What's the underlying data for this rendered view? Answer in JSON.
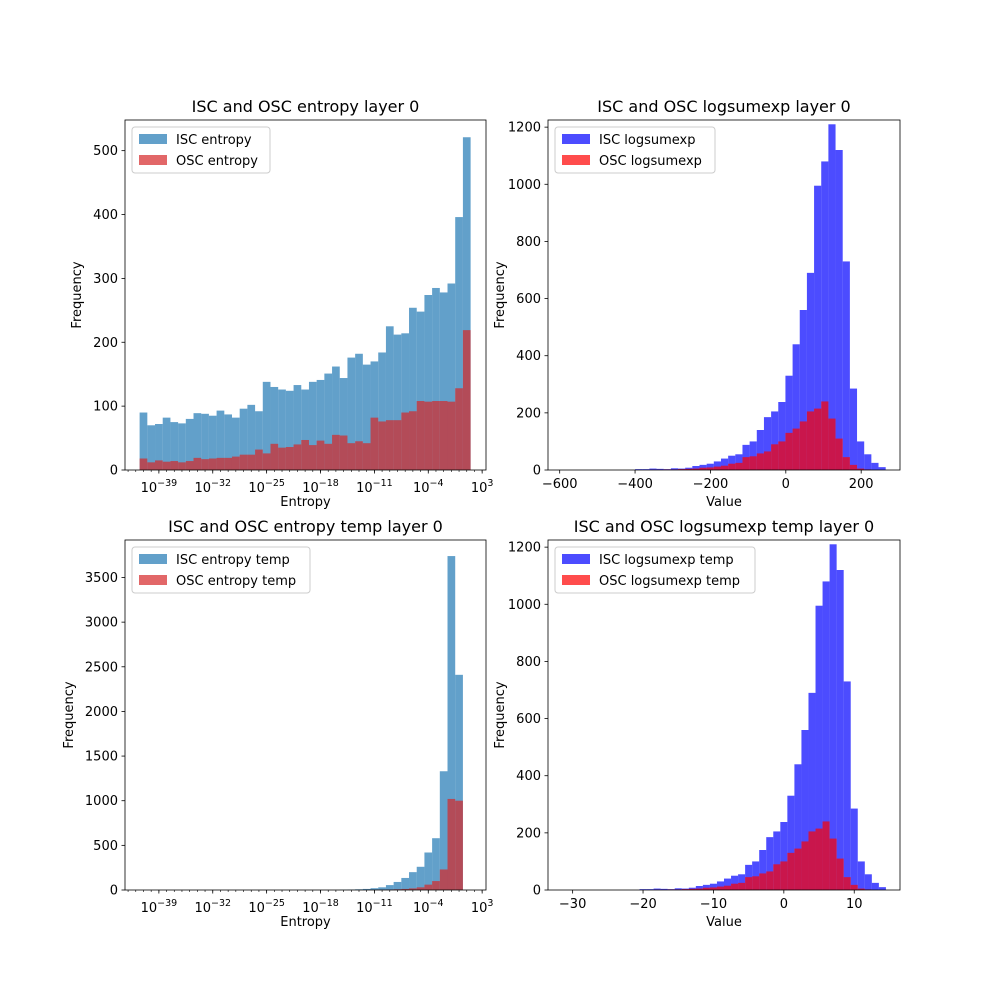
{
  "figure": {
    "background": "#ffffff"
  },
  "chart_data": [
    {
      "type": "histogram",
      "title": "ISC and OSC entropy layer 0",
      "xlabel": "Entropy",
      "ylabel": "Frequency",
      "xscale": "log",
      "xlim_log10": [
        -43.4,
        3.5
      ],
      "ylim": [
        0,
        548
      ],
      "yticks": [
        0,
        100,
        200,
        300,
        400,
        500
      ],
      "xtick_labels": [
        "10^-39",
        "10^-32",
        "10^-25",
        "10^-18",
        "10^-11",
        "10^-4",
        "10^3"
      ],
      "xtick_values_log10": [
        -39,
        -32,
        -25,
        -18,
        -11,
        -4,
        3
      ],
      "bin_edges_log10": [
        -41.5,
        -40.5,
        -39.5,
        -38.5,
        -37.5,
        -36.5,
        -35.5,
        -34.5,
        -33.5,
        -32.5,
        -31.5,
        -30.5,
        -29.5,
        -28.5,
        -27.5,
        -26.5,
        -25.5,
        -24.5,
        -23.5,
        -22.5,
        -21.5,
        -20.5,
        -19.5,
        -18.5,
        -17.5,
        -16.5,
        -15.5,
        -14.5,
        -13.5,
        -12.5,
        -11.5,
        -10.5,
        -9.5,
        -8.5,
        -7.5,
        -6.5,
        -5.5,
        -4.5,
        -3.5,
        -2.5,
        -1.5,
        -0.5,
        0.5,
        1.5
      ],
      "legend_position": "upper left",
      "series": [
        {
          "name": "ISC entropy",
          "color": "#1f77b4",
          "alpha": 0.7,
          "values": [
            90,
            70,
            72,
            82,
            75,
            73,
            80,
            89,
            88,
            85,
            93,
            87,
            82,
            96,
            102,
            92,
            138,
            130,
            126,
            124,
            133,
            126,
            138,
            141,
            151,
            162,
            144,
            176,
            182,
            165,
            170,
            184,
            225,
            212,
            214,
            254,
            248,
            274,
            285,
            278,
            292,
            396,
            521,
            5
          ]
        },
        {
          "name": "OSC entropy",
          "color": "#d62728",
          "alpha": 0.7,
          "values": [
            18,
            12,
            15,
            13,
            14,
            12,
            14,
            19,
            17,
            18,
            19,
            19,
            21,
            24,
            24,
            32,
            26,
            41,
            35,
            36,
            40,
            47,
            39,
            46,
            41,
            55,
            54,
            42,
            45,
            42,
            82,
            76,
            78,
            78,
            90,
            92,
            108,
            107,
            108,
            108,
            107,
            128,
            219,
            0
          ]
        }
      ]
    },
    {
      "type": "histogram",
      "title": "ISC and OSC logsumexp layer 0",
      "xlabel": "Value",
      "ylabel": "Frequency",
      "xscale": "linear",
      "xlim": [
        -631,
        303
      ],
      "ylim": [
        0,
        1225
      ],
      "yticks": [
        0,
        200,
        400,
        600,
        800,
        1000,
        1200
      ],
      "xticks": [
        -600,
        -400,
        -200,
        0,
        200
      ],
      "bin_edges": [
        -590,
        -571,
        -552,
        -533,
        -514,
        -495,
        -476,
        -457,
        -438,
        -419,
        -400,
        -381,
        -362,
        -343,
        -324,
        -305,
        -286,
        -267,
        -248,
        -229,
        -210,
        -191,
        -172,
        -153,
        -134,
        -115,
        -96,
        -77,
        -58,
        -39,
        -20,
        -1,
        18,
        37,
        56,
        75,
        94,
        113,
        132,
        151,
        170,
        189,
        208,
        227,
        246,
        265
      ],
      "legend_position": "upper left",
      "series": [
        {
          "name": "ISC logsumexp",
          "color": "#0000ff",
          "alpha": 0.7,
          "values": [
            0,
            0,
            0,
            0,
            0,
            0,
            0,
            0,
            0,
            0,
            3,
            3,
            5,
            4,
            3,
            6,
            5,
            8,
            14,
            18,
            22,
            30,
            40,
            50,
            55,
            88,
            100,
            140,
            185,
            205,
            238,
            330,
            440,
            560,
            690,
            995,
            1080,
            1210,
            1120,
            730,
            285,
            100,
            55,
            25,
            10
          ]
        },
        {
          "name": "OSC logsumexp",
          "color": "#ff0000",
          "alpha": 0.7,
          "values": [
            0,
            0,
            0,
            0,
            0,
            0,
            0,
            0,
            0,
            0,
            0,
            0,
            1,
            1,
            2,
            2,
            3,
            4,
            5,
            8,
            9,
            12,
            15,
            22,
            25,
            45,
            48,
            58,
            65,
            90,
            100,
            130,
            145,
            170,
            205,
            215,
            240,
            180,
            110,
            45,
            18,
            5,
            2,
            0,
            0
          ]
        }
      ]
    },
    {
      "type": "histogram",
      "title": "ISC and OSC entropy temp layer 0",
      "xlabel": "Entropy",
      "ylabel": "Frequency",
      "xscale": "log",
      "xlim_log10": [
        -43.4,
        3.5
      ],
      "ylim": [
        0,
        3920
      ],
      "yticks": [
        0,
        500,
        1000,
        1500,
        2000,
        2500,
        3000,
        3500
      ],
      "xtick_labels": [
        "10^-39",
        "10^-32",
        "10^-25",
        "10^-18",
        "10^-11",
        "10^-4",
        "10^3"
      ],
      "xtick_values_log10": [
        -39,
        -32,
        -25,
        -18,
        -11,
        -4,
        3
      ],
      "bin_edges_log10": [
        -15.5,
        -14.5,
        -13.5,
        -12.5,
        -11.5,
        -10.5,
        -9.5,
        -8.5,
        -7.5,
        -6.5,
        -5.5,
        -4.5,
        -3.5,
        -2.5,
        -1.5,
        -0.5,
        0.5,
        1.5
      ],
      "legend_position": "upper left",
      "series": [
        {
          "name": "ISC entropy temp",
          "color": "#1f77b4",
          "alpha": 0.7,
          "values": [
            3,
            5,
            8,
            12,
            20,
            30,
            55,
            90,
            135,
            200,
            260,
            420,
            580,
            1330,
            3740,
            2410,
            0
          ]
        },
        {
          "name": "OSC entropy temp",
          "color": "#d62728",
          "alpha": 0.7,
          "values": [
            0,
            0,
            0,
            1,
            2,
            3,
            5,
            8,
            12,
            18,
            30,
            60,
            100,
            230,
            1020,
            1000,
            0
          ]
        }
      ]
    },
    {
      "type": "histogram",
      "title": "ISC and OSC logsumexp temp layer 0",
      "xlabel": "Value",
      "ylabel": "Frequency",
      "xscale": "linear",
      "xlim": [
        -33.5,
        16.5
      ],
      "ylim": [
        0,
        1225
      ],
      "yticks": [
        0,
        200,
        400,
        600,
        800,
        1000,
        1200
      ],
      "xticks": [
        -30,
        -20,
        -10,
        0,
        10
      ],
      "bin_edges": [
        -30.5,
        -29.5,
        -28.5,
        -27.5,
        -26.5,
        -25.5,
        -24.5,
        -23.5,
        -22.5,
        -21.5,
        -20.5,
        -19.5,
        -18.5,
        -17.5,
        -16.5,
        -15.5,
        -14.5,
        -13.5,
        -12.5,
        -11.5,
        -10.5,
        -9.5,
        -8.5,
        -7.5,
        -6.5,
        -5.5,
        -4.5,
        -3.5,
        -2.5,
        -1.5,
        -0.5,
        0.5,
        1.5,
        2.5,
        3.5,
        4.5,
        5.5,
        6.5,
        7.5,
        8.5,
        9.5,
        10.5,
        11.5,
        12.5,
        13.5,
        14.5
      ],
      "legend_position": "upper left",
      "series": [
        {
          "name": "ISC logsumexp temp",
          "color": "#0000ff",
          "alpha": 0.7,
          "values": [
            0,
            0,
            0,
            0,
            0,
            0,
            0,
            0,
            0,
            0,
            3,
            3,
            5,
            4,
            3,
            6,
            5,
            8,
            14,
            18,
            22,
            30,
            40,
            50,
            55,
            88,
            100,
            140,
            185,
            205,
            238,
            330,
            440,
            560,
            690,
            995,
            1080,
            1210,
            1120,
            730,
            285,
            100,
            55,
            25,
            10
          ]
        },
        {
          "name": "OSC logsumexp temp",
          "color": "#ff0000",
          "alpha": 0.7,
          "values": [
            0,
            0,
            0,
            0,
            0,
            0,
            0,
            0,
            0,
            0,
            0,
            0,
            1,
            1,
            2,
            2,
            3,
            4,
            5,
            8,
            9,
            12,
            15,
            22,
            25,
            45,
            48,
            58,
            65,
            90,
            100,
            130,
            145,
            170,
            205,
            215,
            240,
            180,
            110,
            45,
            18,
            5,
            2,
            0,
            0
          ]
        }
      ]
    }
  ]
}
